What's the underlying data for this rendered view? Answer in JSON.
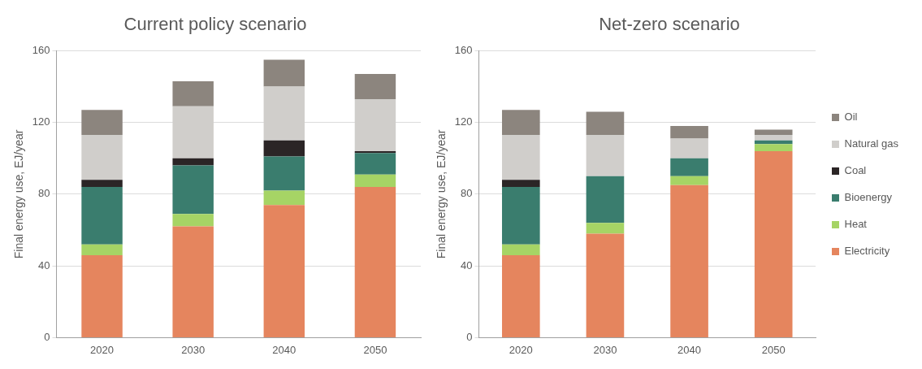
{
  "chart_data": [
    {
      "type": "bar",
      "title": "Current policy scenario",
      "ylabel": "Final energy use, EJ/year",
      "categories": [
        "2020",
        "2030",
        "2040",
        "2050"
      ],
      "stacked": true,
      "ylim": [
        0,
        160
      ],
      "yticks": [
        0,
        40,
        80,
        120,
        160
      ],
      "grid": "y",
      "legend": false,
      "series": [
        {
          "color": "#e5855e",
          "values": [
            46,
            62,
            74,
            84
          ]
        },
        {
          "color": "#a6d465",
          "values": [
            6,
            7,
            8,
            7
          ]
        },
        {
          "color": "#3a7d6e",
          "values": [
            32,
            27,
            19,
            12
          ]
        },
        {
          "color": "#2b2526",
          "values": [
            4,
            4,
            9,
            1
          ]
        },
        {
          "color": "#d0cecb",
          "values": [
            25,
            29,
            30,
            29
          ]
        },
        {
          "color": "#8c857e",
          "values": [
            14,
            14,
            15,
            14
          ]
        }
      ]
    },
    {
      "type": "bar",
      "title": "Net-zero scenario",
      "ylabel": "Final energy use, EJ/year",
      "categories": [
        "2020",
        "2030",
        "2040",
        "2050"
      ],
      "stacked": true,
      "ylim": [
        0,
        160
      ],
      "yticks": [
        0,
        40,
        80,
        120,
        160
      ],
      "grid": "y",
      "legend": "right",
      "series": [
        {
          "name": "Electricity",
          "color": "#e5855e",
          "values": [
            46,
            58,
            85,
            104
          ]
        },
        {
          "name": "Heat",
          "color": "#a6d465",
          "values": [
            6,
            6,
            5,
            4
          ]
        },
        {
          "name": "Bioenergy",
          "color": "#3a7d6e",
          "values": [
            32,
            26,
            10,
            2
          ]
        },
        {
          "name": "Coal",
          "color": "#2b2526",
          "values": [
            4,
            0,
            0,
            0
          ]
        },
        {
          "name": "Natural gas",
          "color": "#d0cecb",
          "values": [
            25,
            23,
            11,
            3
          ]
        },
        {
          "name": "Oil",
          "color": "#8c857e",
          "values": [
            14,
            13,
            7,
            3
          ]
        }
      ]
    }
  ]
}
